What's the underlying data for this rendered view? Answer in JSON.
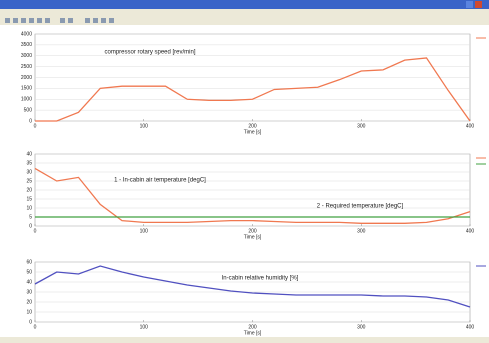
{
  "chart_data": [
    {
      "type": "line",
      "xlabel": "Time [s]",
      "x": [
        0,
        20,
        40,
        60,
        80,
        100,
        120,
        140,
        160,
        180,
        200,
        220,
        240,
        260,
        280,
        300,
        320,
        340,
        360,
        380,
        400
      ],
      "series": [
        {
          "name": "compressor rotary speed [rev/min]",
          "color": "#f07850",
          "values": [
            0,
            0,
            400,
            1500,
            1600,
            1600,
            1600,
            1000,
            950,
            950,
            1000,
            1450,
            1500,
            1550,
            1900,
            2300,
            2350,
            2800,
            2900,
            1400,
            0
          ]
        }
      ],
      "xlim": [
        0,
        400
      ],
      "xticks": [
        0,
        100,
        200,
        300,
        400
      ],
      "ylim": [
        0,
        4000
      ],
      "yticks": [
        0,
        500,
        1000,
        1500,
        2000,
        2500,
        3000,
        3500,
        4000
      ],
      "grid": true
    },
    {
      "type": "line",
      "xlabel": "Time [s]",
      "x": [
        0,
        20,
        40,
        60,
        80,
        100,
        120,
        140,
        160,
        180,
        200,
        220,
        240,
        260,
        280,
        300,
        320,
        340,
        360,
        380,
        400
      ],
      "series": [
        {
          "name": "1 - In-cabin air temperature [degC]",
          "color": "#f07850",
          "values": [
            32,
            25,
            27,
            12,
            3,
            2,
            2,
            2,
            2.5,
            3,
            3,
            2.5,
            2,
            2,
            2,
            1.5,
            1.5,
            1.5,
            2,
            4,
            8
          ]
        },
        {
          "name": "2 - Required temperature [degC]",
          "color": "#40a040",
          "values": [
            5,
            5,
            5,
            5,
            5,
            5,
            5,
            5,
            5,
            5,
            5,
            5,
            5,
            5,
            5,
            5,
            5,
            5,
            5,
            5,
            5
          ]
        }
      ],
      "xlim": [
        0,
        400
      ],
      "xticks": [
        0,
        100,
        200,
        300,
        400
      ],
      "ylim": [
        0,
        40
      ],
      "yticks": [
        0,
        5,
        10,
        15,
        20,
        25,
        30,
        35,
        40
      ],
      "grid": true
    },
    {
      "type": "line",
      "xlabel": "Time [s]",
      "x": [
        0,
        20,
        40,
        60,
        80,
        100,
        120,
        140,
        160,
        180,
        200,
        220,
        240,
        260,
        280,
        300,
        320,
        340,
        360,
        380,
        400
      ],
      "series": [
        {
          "name": "In-cabin relative humidity [%]",
          "color": "#5050c0",
          "values": [
            38,
            50,
            48,
            56,
            50,
            45,
            41,
            37,
            34,
            31,
            29,
            28,
            27,
            27,
            27,
            27,
            26,
            26,
            25,
            22,
            15
          ]
        }
      ],
      "xlim": [
        0,
        400
      ],
      "xticks": [
        0,
        100,
        200,
        300,
        400
      ],
      "ylim": [
        0,
        60
      ],
      "yticks": [
        0,
        10,
        20,
        30,
        40,
        50,
        60
      ],
      "grid": true
    }
  ]
}
